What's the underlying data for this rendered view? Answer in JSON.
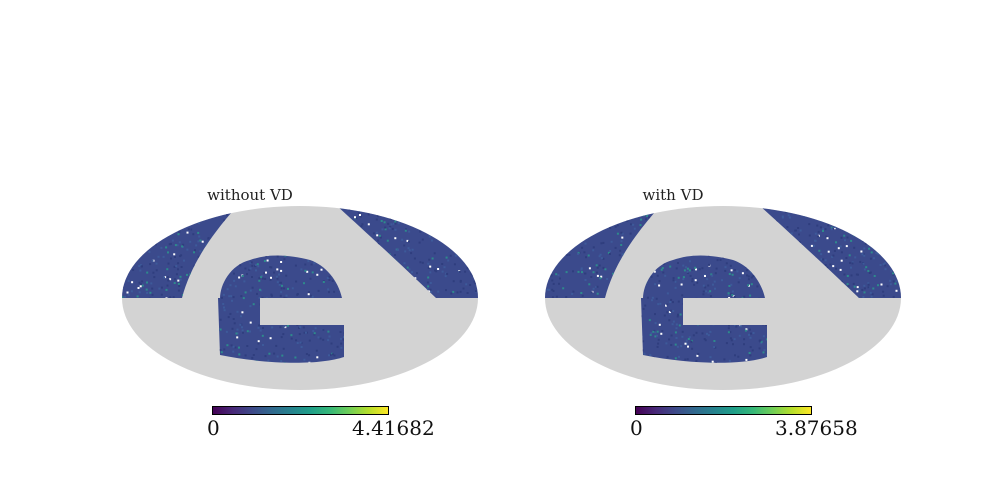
{
  "figure": {
    "background": "#ffffff",
    "mask_color": "#d3d3d3",
    "colormap": "viridis",
    "projection": "mollweide"
  },
  "chart_data": [
    {
      "type": "heatmap",
      "title": "without VD",
      "colorbar": {
        "min": "0",
        "max": "4.41682",
        "colormap": "viridis"
      }
    },
    {
      "type": "heatmap",
      "title": "with VD",
      "colorbar": {
        "min": "0",
        "max": "3.87658",
        "colormap": "viridis"
      }
    }
  ]
}
